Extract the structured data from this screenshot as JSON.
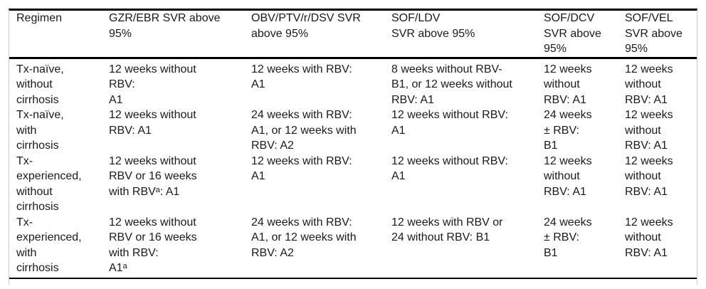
{
  "colors": {
    "text": "#1a1a1a",
    "heavy_rule": "#000000",
    "frame_line": "#c9c9c9",
    "background": "#ffffff"
  },
  "table": {
    "columns": [
      "Regimen",
      "GZR/EBR SVR above\n95%",
      "OBV/PTV/r/DSV SVR\nabove 95%",
      "SOF/LDV\nSVR above 95%",
      "SOF/DCV\nSVR above\n95%",
      "SOF/VEL\nSVR above\n95%"
    ],
    "rows": [
      {
        "cells": [
          "Tx-naïve,\nwithout\ncirrhosis",
          "12 weeks without\nRBV:\nA1",
          "12 weeks with RBV:\nA1",
          "8 weeks without RBV-\nB1, or 12 weeks without\nRBV: A1",
          "12 weeks\nwithout\nRBV: A1",
          "12 weeks\nwithout\nRBV: A1"
        ]
      },
      {
        "cells": [
          "Tx-naïve,\nwith\ncirrhosis",
          "12 weeks without\nRBV: A1",
          "24 weeks with RBV:\nA1, or 12 weeks with\nRBV: A2",
          "12 weeks without RBV:\nA1",
          "24 weeks\n± RBV:\nB1",
          "12 weeks\nwithout\nRBV: A1"
        ]
      },
      {
        "cells": [
          "Tx-\nexperienced,\nwithout\ncirrhosis",
          "12 weeks without\nRBV or 16 weeks\nwith RBVᵃ: A1",
          "12 weeks with RBV:\nA1",
          "12 weeks without RBV:\nA1",
          "12 weeks\nwithout\nRBV: A1",
          "12 weeks\nwithout\nRBV: A1"
        ]
      },
      {
        "cells": [
          "Tx-\nexperienced,\nwith\ncirrhosis",
          "12 weeks without\nRBV or 16 weeks\nwith RBV:\nA1ᵃ",
          "24 weeks with RBV:\nA1, or 12 weeks with\nRBV: A2",
          "12 weeks with RBV or\n24 without RBV: B1",
          "24 weeks\n± RBV:\nB1",
          "12 weeks\nwithout\nRBV: A1"
        ]
      }
    ]
  }
}
